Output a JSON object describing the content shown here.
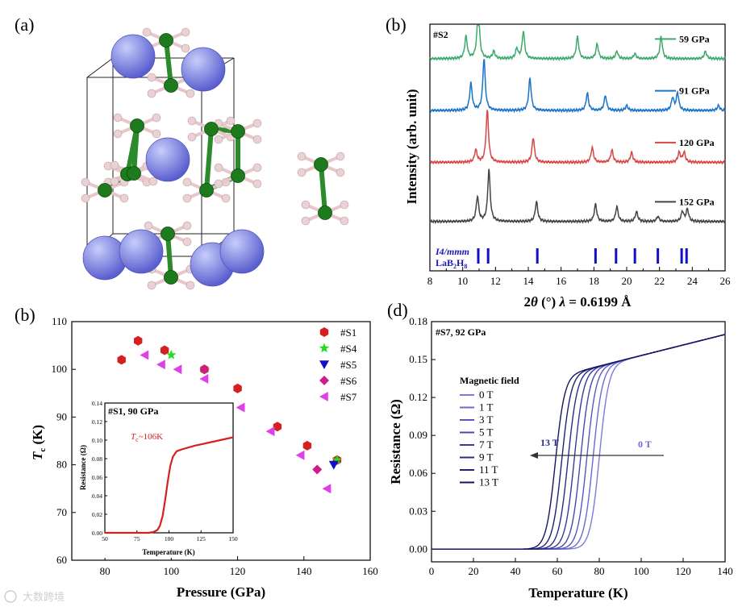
{
  "panels": {
    "a": {
      "label": "(a)"
    },
    "b_top": {
      "label": "(b)"
    },
    "b_bottom": {
      "label": "(b)"
    },
    "d": {
      "label": "(d)"
    }
  },
  "watermark": "大数跨境",
  "colors": {
    "s1": "#d62020",
    "s4": "#22dd22",
    "s5": "#1010c8",
    "s6": "#d01c8b",
    "s7": "#e040e8",
    "tc_curve": "#d62020",
    "arrow": "#333333"
  },
  "chart_data": [
    {
      "id": "xrd",
      "type": "line",
      "sample": "#S2",
      "xlabel_parts": [
        "2",
        "θ",
        " (°) ",
        "λ",
        " = 0.6199 Å"
      ],
      "ylabel": "Intensity (arb. unit)",
      "xlim": [
        8,
        26
      ],
      "xticks": [
        "8",
        "10",
        "12",
        "14",
        "16",
        "18",
        "20",
        "22",
        "24",
        "26"
      ],
      "series": [
        {
          "name": "59 GPa",
          "color": "#3daa6c",
          "baseline": 0.86,
          "peaks": [
            [
              10.2,
              0.09
            ],
            [
              10.95,
              0.21
            ],
            [
              11.9,
              0.03
            ],
            [
              13.3,
              0.04
            ],
            [
              13.7,
              0.11
            ],
            [
              17.0,
              0.09
            ],
            [
              18.2,
              0.06
            ],
            [
              19.4,
              0.03
            ],
            [
              20.5,
              0.02
            ],
            [
              22.1,
              0.09
            ],
            [
              24.8,
              0.03
            ]
          ]
        },
        {
          "name": "91 GPa",
          "color": "#1a73c9",
          "baseline": 0.65,
          "peaks": [
            [
              10.5,
              0.11
            ],
            [
              11.3,
              0.21
            ],
            [
              14.1,
              0.13
            ],
            [
              17.6,
              0.07
            ],
            [
              18.7,
              0.06
            ],
            [
              20.0,
              0.02
            ],
            [
              22.8,
              0.05
            ],
            [
              23.1,
              0.07
            ],
            [
              25.6,
              0.02
            ]
          ]
        },
        {
          "name": "120 GPa",
          "color": "#d94545",
          "baseline": 0.44,
          "peaks": [
            [
              10.8,
              0.05
            ],
            [
              11.5,
              0.21
            ],
            [
              14.3,
              0.1
            ],
            [
              17.9,
              0.06
            ],
            [
              19.1,
              0.05
            ],
            [
              20.3,
              0.04
            ],
            [
              23.2,
              0.04
            ],
            [
              23.5,
              0.04
            ]
          ]
        },
        {
          "name": "152 GPa",
          "color": "#444444",
          "baseline": 0.2,
          "peaks": [
            [
              10.9,
              0.1
            ],
            [
              11.6,
              0.21
            ],
            [
              14.5,
              0.08
            ],
            [
              18.1,
              0.07
            ],
            [
              19.4,
              0.06
            ],
            [
              20.6,
              0.04
            ],
            [
              21.9,
              0.02
            ],
            [
              23.4,
              0.04
            ],
            [
              23.7,
              0.05
            ]
          ]
        }
      ],
      "reference": {
        "phase": "I4/mmm",
        "formula_parts": [
          "LaB",
          "2",
          "H",
          "8"
        ],
        "positions": [
          10.95,
          11.55,
          14.55,
          18.1,
          19.35,
          20.5,
          21.9,
          23.35,
          23.65
        ]
      }
    },
    {
      "id": "tc",
      "type": "scatter",
      "xlabel": "Pressure (GPa)",
      "ylabel_main": "T",
      "ylabel_sub": "c",
      "ylabel_unit": " (K)",
      "xlim": [
        70,
        160
      ],
      "ylim": [
        60,
        110
      ],
      "xticks": [
        "80",
        "100",
        "120",
        "140",
        "160"
      ],
      "yticks": [
        "60",
        "70",
        "80",
        "90",
        "100",
        "110"
      ],
      "series": [
        {
          "name": "#S1",
          "marker": "hexagon",
          "color": "#d62020",
          "points": [
            [
              85,
              102
            ],
            [
              90,
              106
            ],
            [
              98,
              104
            ],
            [
              110,
              100
            ],
            [
              120,
              96
            ],
            [
              132,
              88
            ],
            [
              141,
              84
            ],
            [
              150,
              81
            ]
          ]
        },
        {
          "name": "#S4",
          "marker": "star",
          "color": "#22dd22",
          "points": [
            [
              100,
              103
            ],
            [
              110,
              100
            ],
            [
              150,
              81
            ]
          ]
        },
        {
          "name": "#S5",
          "marker": "triangle-down",
          "color": "#1010c8",
          "points": [
            [
              149,
              80
            ]
          ]
        },
        {
          "name": "#S6",
          "marker": "diamond",
          "color": "#d01c8b",
          "points": [
            [
              110,
              100
            ],
            [
              144,
              79
            ]
          ]
        },
        {
          "name": "#S7",
          "marker": "triangle-left",
          "color": "#e040e8",
          "points": [
            [
              92,
              103
            ],
            [
              97,
              101
            ],
            [
              102,
              100
            ],
            [
              110,
              98
            ],
            [
              121,
              92
            ],
            [
              130,
              87
            ],
            [
              139,
              82
            ],
            [
              147,
              75
            ]
          ]
        }
      ],
      "inset": {
        "title": "#S1, 90 GPa",
        "annotation_parts": [
          "T",
          "c",
          "~106K"
        ],
        "xlabel": "Temperature (K)",
        "ylabel": "Resistance (Ω)",
        "xlim": [
          50,
          150
        ],
        "ylim": [
          0,
          0.14
        ],
        "xticks": [
          "50",
          "75",
          "100",
          "125",
          "150"
        ],
        "yticks": [
          "0.00",
          "0.02",
          "0.04",
          "0.06",
          "0.08",
          "0.10",
          "0.12",
          "0.14"
        ],
        "curve": [
          [
            50,
            0
          ],
          [
            84,
            0
          ],
          [
            88,
            0.001
          ],
          [
            91,
            0.003
          ],
          [
            93,
            0.008
          ],
          [
            95,
            0.018
          ],
          [
            97,
            0.035
          ],
          [
            99,
            0.055
          ],
          [
            101,
            0.072
          ],
          [
            103,
            0.082
          ],
          [
            106,
            0.088
          ],
          [
            110,
            0.09
          ],
          [
            120,
            0.094
          ],
          [
            130,
            0.097
          ],
          [
            140,
            0.1
          ],
          [
            150,
            0.103
          ]
        ]
      }
    },
    {
      "id": "rt",
      "type": "line",
      "title": "#S7, 92 GPa",
      "xlabel": "Temperature (K)",
      "ylabel": "Resistance (Ω)",
      "xlim": [
        0,
        140
      ],
      "ylim": [
        -0.01,
        0.18
      ],
      "xticks": [
        "0",
        "20",
        "40",
        "60",
        "80",
        "100",
        "120",
        "140"
      ],
      "yticks": [
        "0.00",
        "0.03",
        "0.06",
        "0.09",
        "0.12",
        "0.15",
        "0.18"
      ],
      "legend_title": "Magnetic field",
      "series": [
        {
          "name": "0 T",
          "Tc": 89,
          "color": "#7b7bdc"
        },
        {
          "name": "1 T",
          "Tc": 86,
          "color": "#6a6ad0"
        },
        {
          "name": "3 T",
          "Tc": 83,
          "color": "#5858c2"
        },
        {
          "name": "5 T",
          "Tc": 80,
          "color": "#4848b0"
        },
        {
          "name": "7 T",
          "Tc": 77,
          "color": "#38389c"
        },
        {
          "name": "9 T",
          "Tc": 74,
          "color": "#2b2b88"
        },
        {
          "name": "11 T",
          "Tc": 71,
          "color": "#202074"
        },
        {
          "name": "13 T",
          "Tc": 68,
          "color": "#151560"
        }
      ],
      "arrow_left_label": "13 T",
      "arrow_right_label": "0 T"
    }
  ]
}
